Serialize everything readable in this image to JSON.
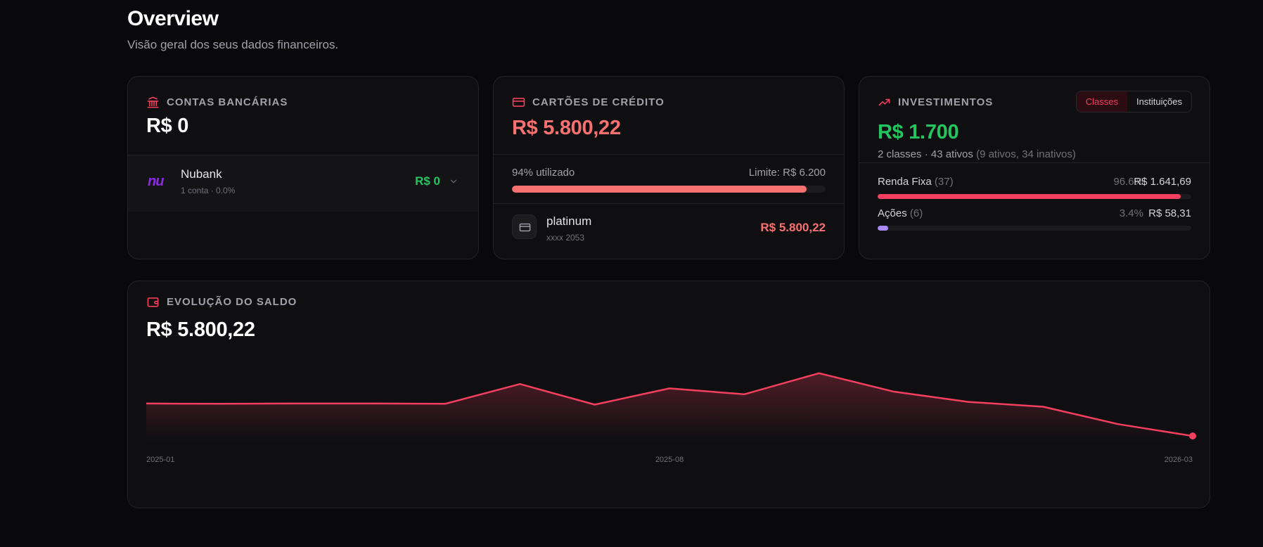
{
  "page": {
    "title": "Overview",
    "subtitle": "Visão geral dos seus dados financeiros."
  },
  "colors": {
    "accent": "#f43f5e",
    "positive": "#22c55e",
    "negative": "#f87171",
    "purple": "#a78bfa",
    "nubank": "#8a2be2"
  },
  "accounts": {
    "icon": "bank-icon",
    "label": "CONTAS BANCÁRIAS",
    "total": "R$ 0",
    "items": [
      {
        "logo": "nu",
        "name": "Nubank",
        "meta": "1 conta · 0.0%",
        "value": "R$ 0"
      }
    ]
  },
  "credit_cards": {
    "icon": "credit-card-icon",
    "label": "CARTÕES DE CRÉDITO",
    "total": "R$ 5.800,22",
    "utilization_text": "94% utilizado",
    "utilization_fraction": 0.94,
    "limit_text": "Limite: R$ 6.200",
    "items": [
      {
        "name": "platinum",
        "meta": "xxxx 2053",
        "value": "R$ 5.800,22"
      }
    ]
  },
  "investments": {
    "icon": "trending-up-icon",
    "label": "INVESTIMENTOS",
    "toggle": [
      "Classes",
      "Instituições"
    ],
    "toggle_active": "Classes",
    "total": "R$ 1.700",
    "meta_main": "2 classes · 43 ativos",
    "meta_muted": "(9 ativos, 34 inativos)",
    "classes": [
      {
        "name": "Renda Fixa",
        "count": "(37)",
        "pct": "96.6%",
        "value": "R$ 1.641,69",
        "fraction": 0.966,
        "color": "#f43f5e"
      },
      {
        "name": "Ações",
        "count": "(6)",
        "pct": "3.4%",
        "value": "R$ 58,31",
        "fraction": 0.034,
        "color": "#a78bfa"
      }
    ]
  },
  "evolution": {
    "icon": "wallet-icon",
    "label": "EVOLUÇÃO DO SALDO",
    "total": "R$ 5.800,22"
  },
  "chart_data": {
    "type": "area",
    "title": "",
    "x_tick_labels": [
      "2025-01",
      "2025-08",
      "2026-03"
    ],
    "x": [
      "2025-01",
      "2025-02",
      "2025-03",
      "2025-04",
      "2025-05",
      "2025-06",
      "2025-07",
      "2025-08",
      "2025-09",
      "2025-10",
      "2025-11",
      "2025-12",
      "2026-01",
      "2026-02",
      "2026-03"
    ],
    "series": [
      {
        "values": [
          50,
          49.5,
          50,
          50,
          49.5,
          86,
          48,
          78,
          67,
          106,
          72,
          53,
          44,
          12,
          -10
        ]
      }
    ],
    "ylim": [
      -15,
      120
    ],
    "grid": false,
    "legend": "none"
  }
}
